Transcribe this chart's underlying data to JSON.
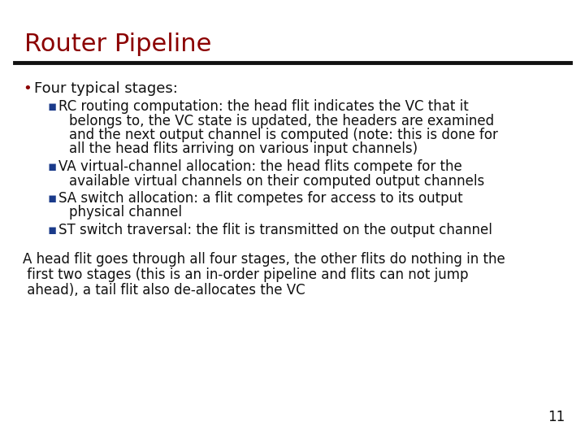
{
  "title": "Router Pipeline",
  "title_color": "#8B0000",
  "title_fontsize": 22,
  "separator_color": "#111111",
  "background_color": "#ffffff",
  "bullet_color": "#8B0000",
  "sub_bullet_color": "#1a3a8a",
  "body_color": "#111111",
  "bullet_text": "Four typical stages:",
  "bullet_fontsize": 13,
  "sub_bullets": [
    [
      "RC routing computation: the head flit indicates the VC that it",
      "belongs to, the VC state is updated, the headers are examined",
      "and the next output channel is computed (note: this is done for",
      "all the head flits arriving on various input channels)"
    ],
    [
      "VA virtual-channel allocation: the head flits compete for the",
      "available virtual channels on their computed output channels"
    ],
    [
      "SA switch allocation: a flit competes for access to its output",
      "physical channel"
    ],
    [
      "ST switch traversal: the flit is transmitted on the output channel"
    ]
  ],
  "sub_bullet_fontsize": 12,
  "paragraph_lines": [
    "A head flit goes through all four stages, the other flits do nothing in the",
    " first two stages (this is an in-order pipeline and flits can not jump",
    " ahead), a tail flit also de-allocates the VC"
  ],
  "paragraph_fontsize": 12,
  "page_number": "11",
  "page_number_fontsize": 12
}
